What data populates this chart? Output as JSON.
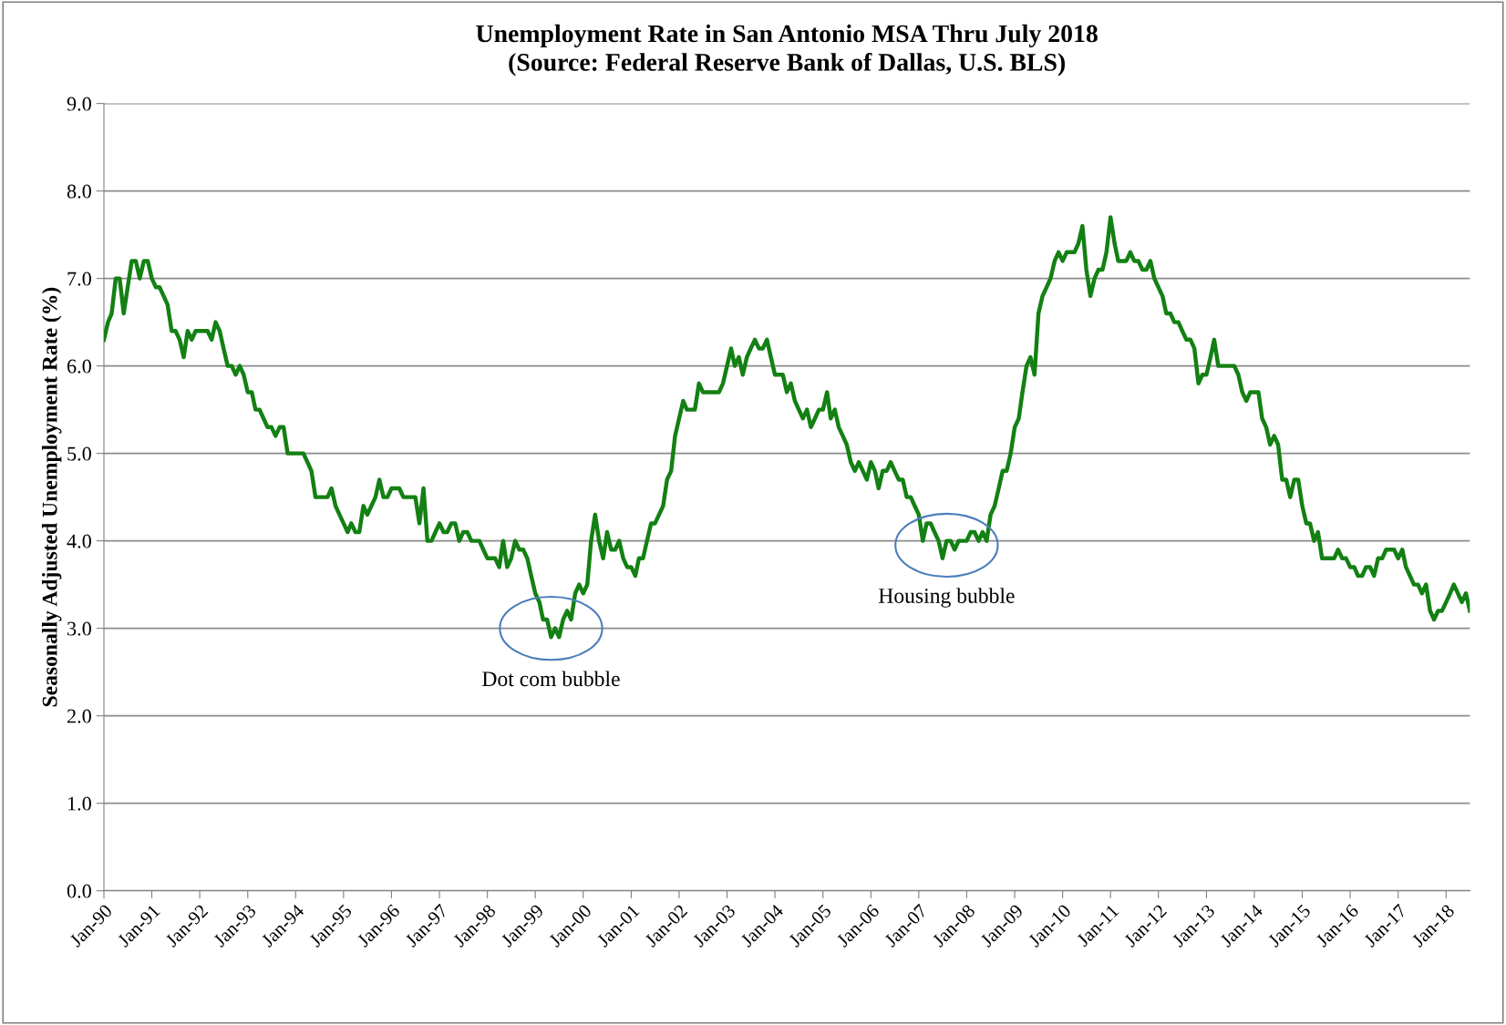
{
  "chart_data": {
    "type": "line",
    "title": "Unemployment Rate in San Antonio MSA Thru July 2018\n(Source: Federal Reserve Bank of Dallas, U.S. BLS)",
    "ylabel": "Seasonally Adjusted Unemployment Rate (%)",
    "x": [
      "1990-01",
      "1990-02",
      "1990-03",
      "1990-04",
      "1990-05",
      "1990-06",
      "1990-07",
      "1990-08",
      "1990-09",
      "1990-10",
      "1990-11",
      "1990-12",
      "1991-01",
      "1991-02",
      "1991-03",
      "1991-04",
      "1991-05",
      "1991-06",
      "1991-07",
      "1991-08",
      "1991-09",
      "1991-10",
      "1991-11",
      "1991-12",
      "1992-01",
      "1992-02",
      "1992-03",
      "1992-04",
      "1992-05",
      "1992-06",
      "1992-07",
      "1992-08",
      "1992-09",
      "1992-10",
      "1992-11",
      "1992-12",
      "1993-01",
      "1993-02",
      "1993-03",
      "1993-04",
      "1993-05",
      "1993-06",
      "1993-07",
      "1993-08",
      "1993-09",
      "1993-10",
      "1993-11",
      "1993-12",
      "1994-01",
      "1994-02",
      "1994-03",
      "1994-04",
      "1994-05",
      "1994-06",
      "1994-07",
      "1994-08",
      "1994-09",
      "1994-10",
      "1994-11",
      "1994-12",
      "1995-01",
      "1995-02",
      "1995-03",
      "1995-04",
      "1995-05",
      "1995-06",
      "1995-07",
      "1995-08",
      "1995-09",
      "1995-10",
      "1995-11",
      "1995-12",
      "1996-01",
      "1996-02",
      "1996-03",
      "1996-04",
      "1996-05",
      "1996-06",
      "1996-07",
      "1996-08",
      "1996-09",
      "1996-10",
      "1996-11",
      "1996-12",
      "1997-01",
      "1997-02",
      "1997-03",
      "1997-04",
      "1997-05",
      "1997-06",
      "1997-07",
      "1997-08",
      "1997-09",
      "1997-10",
      "1997-11",
      "1997-12",
      "1998-01",
      "1998-02",
      "1998-03",
      "1998-04",
      "1998-05",
      "1998-06",
      "1998-07",
      "1998-08",
      "1998-09",
      "1998-10",
      "1998-11",
      "1998-12",
      "1999-01",
      "1999-02",
      "1999-03",
      "1999-04",
      "1999-05",
      "1999-06",
      "1999-07",
      "1999-08",
      "1999-09",
      "1999-10",
      "1999-11",
      "1999-12",
      "2000-01",
      "2000-02",
      "2000-03",
      "2000-04",
      "2000-05",
      "2000-06",
      "2000-07",
      "2000-08",
      "2000-09",
      "2000-10",
      "2000-11",
      "2000-12",
      "2001-01",
      "2001-02",
      "2001-03",
      "2001-04",
      "2001-05",
      "2001-06",
      "2001-07",
      "2001-08",
      "2001-09",
      "2001-10",
      "2001-11",
      "2001-12",
      "2002-01",
      "2002-02",
      "2002-03",
      "2002-04",
      "2002-05",
      "2002-06",
      "2002-07",
      "2002-08",
      "2002-09",
      "2002-10",
      "2002-11",
      "2002-12",
      "2003-01",
      "2003-02",
      "2003-03",
      "2003-04",
      "2003-05",
      "2003-06",
      "2003-07",
      "2003-08",
      "2003-09",
      "2003-10",
      "2003-11",
      "2003-12",
      "2004-01",
      "2004-02",
      "2004-03",
      "2004-04",
      "2004-05",
      "2004-06",
      "2004-07",
      "2004-08",
      "2004-09",
      "2004-10",
      "2004-11",
      "2004-12",
      "2005-01",
      "2005-02",
      "2005-03",
      "2005-04",
      "2005-05",
      "2005-06",
      "2005-07",
      "2005-08",
      "2005-09",
      "2005-10",
      "2005-11",
      "2005-12",
      "2006-01",
      "2006-02",
      "2006-03",
      "2006-04",
      "2006-05",
      "2006-06",
      "2006-07",
      "2006-08",
      "2006-09",
      "2006-10",
      "2006-11",
      "2006-12",
      "2007-01",
      "2007-02",
      "2007-03",
      "2007-04",
      "2007-05",
      "2007-06",
      "2007-07",
      "2007-08",
      "2007-09",
      "2007-10",
      "2007-11",
      "2007-12",
      "2008-01",
      "2008-02",
      "2008-03",
      "2008-04",
      "2008-05",
      "2008-06",
      "2008-07",
      "2008-08",
      "2008-09",
      "2008-10",
      "2008-11",
      "2008-12",
      "2009-01",
      "2009-02",
      "2009-03",
      "2009-04",
      "2009-05",
      "2009-06",
      "2009-07",
      "2009-08",
      "2009-09",
      "2009-10",
      "2009-11",
      "2009-12",
      "2010-01",
      "2010-02",
      "2010-03",
      "2010-04",
      "2010-05",
      "2010-06",
      "2010-07",
      "2010-08",
      "2010-09",
      "2010-10",
      "2010-11",
      "2010-12",
      "2011-01",
      "2011-02",
      "2011-03",
      "2011-04",
      "2011-05",
      "2011-06",
      "2011-07",
      "2011-08",
      "2011-09",
      "2011-10",
      "2011-11",
      "2011-12",
      "2012-01",
      "2012-02",
      "2012-03",
      "2012-04",
      "2012-05",
      "2012-06",
      "2012-07",
      "2012-08",
      "2012-09",
      "2012-10",
      "2012-11",
      "2012-12",
      "2013-01",
      "2013-02",
      "2013-03",
      "2013-04",
      "2013-05",
      "2013-06",
      "2013-07",
      "2013-08",
      "2013-09",
      "2013-10",
      "2013-11",
      "2013-12",
      "2014-01",
      "2014-02",
      "2014-03",
      "2014-04",
      "2014-05",
      "2014-06",
      "2014-07",
      "2014-08",
      "2014-09",
      "2014-10",
      "2014-11",
      "2014-12",
      "2015-01",
      "2015-02",
      "2015-03",
      "2015-04",
      "2015-05",
      "2015-06",
      "2015-07",
      "2015-08",
      "2015-09",
      "2015-10",
      "2015-11",
      "2015-12",
      "2016-01",
      "2016-02",
      "2016-03",
      "2016-04",
      "2016-05",
      "2016-06",
      "2016-07",
      "2016-08",
      "2016-09",
      "2016-10",
      "2016-11",
      "2016-12",
      "2017-01",
      "2017-02",
      "2017-03",
      "2017-04",
      "2017-05",
      "2017-06",
      "2017-07",
      "2017-08",
      "2017-09",
      "2017-10",
      "2017-11",
      "2017-12",
      "2018-01",
      "2018-02",
      "2018-03",
      "2018-04",
      "2018-05",
      "2018-06",
      "2018-07"
    ],
    "series": [
      {
        "color": "#138013",
        "values": [
          6.3,
          6.5,
          6.6,
          7.0,
          7.0,
          6.6,
          6.9,
          7.2,
          7.2,
          7.0,
          7.2,
          7.2,
          7.0,
          6.9,
          6.9,
          6.8,
          6.7,
          6.4,
          6.4,
          6.3,
          6.1,
          6.4,
          6.3,
          6.4,
          6.4,
          6.4,
          6.4,
          6.3,
          6.5,
          6.4,
          6.2,
          6.0,
          6.0,
          5.9,
          6.0,
          5.9,
          5.7,
          5.7,
          5.5,
          5.5,
          5.4,
          5.3,
          5.3,
          5.2,
          5.3,
          5.3,
          5.0,
          5.0,
          5.0,
          5.0,
          5.0,
          4.9,
          4.8,
          4.5,
          4.5,
          4.5,
          4.5,
          4.6,
          4.4,
          4.3,
          4.2,
          4.1,
          4.2,
          4.1,
          4.1,
          4.4,
          4.3,
          4.4,
          4.5,
          4.7,
          4.5,
          4.5,
          4.6,
          4.6,
          4.6,
          4.5,
          4.5,
          4.5,
          4.5,
          4.2,
          4.6,
          4.0,
          4.0,
          4.1,
          4.2,
          4.1,
          4.1,
          4.2,
          4.2,
          4.0,
          4.1,
          4.1,
          4.0,
          4.0,
          4.0,
          3.9,
          3.8,
          3.8,
          3.8,
          3.7,
          4.0,
          3.7,
          3.8,
          4.0,
          3.9,
          3.9,
          3.8,
          3.6,
          3.4,
          3.3,
          3.1,
          3.1,
          2.9,
          3.0,
          2.9,
          3.1,
          3.2,
          3.1,
          3.4,
          3.5,
          3.4,
          3.5,
          4.0,
          4.3,
          4.0,
          3.8,
          4.1,
          3.9,
          3.9,
          4.0,
          3.8,
          3.7,
          3.7,
          3.6,
          3.8,
          3.8,
          4.0,
          4.2,
          4.2,
          4.3,
          4.4,
          4.7,
          4.8,
          5.2,
          5.4,
          5.6,
          5.5,
          5.5,
          5.5,
          5.8,
          5.7,
          5.7,
          5.7,
          5.7,
          5.7,
          5.8,
          6.0,
          6.2,
          6.0,
          6.1,
          5.9,
          6.1,
          6.2,
          6.3,
          6.2,
          6.2,
          6.3,
          6.1,
          5.9,
          5.9,
          5.9,
          5.7,
          5.8,
          5.6,
          5.5,
          5.4,
          5.5,
          5.3,
          5.4,
          5.5,
          5.5,
          5.7,
          5.4,
          5.5,
          5.3,
          5.2,
          5.1,
          4.9,
          4.8,
          4.9,
          4.8,
          4.7,
          4.9,
          4.8,
          4.6,
          4.8,
          4.8,
          4.9,
          4.8,
          4.7,
          4.7,
          4.5,
          4.5,
          4.4,
          4.3,
          4.0,
          4.2,
          4.2,
          4.1,
          4.0,
          3.8,
          4.0,
          4.0,
          3.9,
          4.0,
          4.0,
          4.0,
          4.1,
          4.1,
          4.0,
          4.1,
          4.0,
          4.3,
          4.4,
          4.6,
          4.8,
          4.8,
          5.0,
          5.3,
          5.4,
          5.7,
          6.0,
          6.1,
          5.9,
          6.6,
          6.8,
          6.9,
          7.0,
          7.2,
          7.3,
          7.2,
          7.3,
          7.3,
          7.3,
          7.4,
          7.6,
          7.1,
          6.8,
          7.0,
          7.1,
          7.1,
          7.3,
          7.7,
          7.4,
          7.2,
          7.2,
          7.2,
          7.3,
          7.2,
          7.2,
          7.1,
          7.1,
          7.2,
          7.0,
          6.9,
          6.8,
          6.6,
          6.6,
          6.5,
          6.5,
          6.4,
          6.3,
          6.3,
          6.2,
          5.8,
          5.9,
          5.9,
          6.1,
          6.3,
          6.0,
          6.0,
          6.0,
          6.0,
          6.0,
          5.9,
          5.7,
          5.6,
          5.7,
          5.7,
          5.7,
          5.4,
          5.3,
          5.1,
          5.2,
          5.1,
          4.7,
          4.7,
          4.5,
          4.7,
          4.7,
          4.4,
          4.2,
          4.2,
          4.0,
          4.1,
          3.8,
          3.8,
          3.8,
          3.8,
          3.9,
          3.8,
          3.8,
          3.7,
          3.7,
          3.6,
          3.6,
          3.7,
          3.7,
          3.6,
          3.8,
          3.8,
          3.9,
          3.9,
          3.9,
          3.8,
          3.9,
          3.7,
          3.6,
          3.5,
          3.5,
          3.4,
          3.5,
          3.2,
          3.1,
          3.2,
          3.2,
          3.3,
          3.4,
          3.5,
          3.4,
          3.3,
          3.4,
          3.2
        ]
      }
    ],
    "xlim": [
      "1990-01",
      "2018-07"
    ],
    "xticks": [
      {
        "value": "1990-01",
        "label": "Jan-90"
      },
      {
        "value": "1991-01",
        "label": "Jan-91"
      },
      {
        "value": "1992-01",
        "label": "Jan-92"
      },
      {
        "value": "1993-01",
        "label": "Jan-93"
      },
      {
        "value": "1994-01",
        "label": "Jan-94"
      },
      {
        "value": "1995-01",
        "label": "Jan-95"
      },
      {
        "value": "1996-01",
        "label": "Jan-96"
      },
      {
        "value": "1997-01",
        "label": "Jan-97"
      },
      {
        "value": "1998-01",
        "label": "Jan-98"
      },
      {
        "value": "1999-01",
        "label": "Jan-99"
      },
      {
        "value": "2000-01",
        "label": "Jan-00"
      },
      {
        "value": "2001-01",
        "label": "Jan-01"
      },
      {
        "value": "2002-01",
        "label": "Jan-02"
      },
      {
        "value": "2003-01",
        "label": "Jan-03"
      },
      {
        "value": "2004-01",
        "label": "Jan-04"
      },
      {
        "value": "2005-01",
        "label": "Jan-05"
      },
      {
        "value": "2006-01",
        "label": "Jan-06"
      },
      {
        "value": "2007-01",
        "label": "Jan-07"
      },
      {
        "value": "2008-01",
        "label": "Jan-08"
      },
      {
        "value": "2009-01",
        "label": "Jan-09"
      },
      {
        "value": "2010-01",
        "label": "Jan-10"
      },
      {
        "value": "2011-01",
        "label": "Jan-11"
      },
      {
        "value": "2012-01",
        "label": "Jan-12"
      },
      {
        "value": "2013-01",
        "label": "Jan-13"
      },
      {
        "value": "2014-01",
        "label": "Jan-14"
      },
      {
        "value": "2015-01",
        "label": "Jan-15"
      },
      {
        "value": "2016-01",
        "label": "Jan-16"
      },
      {
        "value": "2017-01",
        "label": "Jan-17"
      },
      {
        "value": "2018-01",
        "label": "Jan-18"
      }
    ],
    "ylim": [
      0,
      9
    ],
    "yticks": [
      {
        "value": 0,
        "label": "0.0"
      },
      {
        "value": 1,
        "label": "1.0"
      },
      {
        "value": 2,
        "label": "2.0"
      },
      {
        "value": 3,
        "label": "3.0"
      },
      {
        "value": 4,
        "label": "4.0"
      },
      {
        "value": 5,
        "label": "5.0"
      },
      {
        "value": 6,
        "label": "6.0"
      },
      {
        "value": 7,
        "label": "7.0"
      },
      {
        "value": 8,
        "label": "8.0"
      },
      {
        "value": 9,
        "label": "9.0"
      }
    ],
    "grid": "y",
    "marker": "none",
    "line_style": "solid",
    "annotations": [
      {
        "text": "Dot com bubble",
        "x": "1999-05",
        "y": 3.0
      },
      {
        "text": "Housing bubble",
        "x": "2007-08",
        "y": 3.95
      }
    ]
  }
}
